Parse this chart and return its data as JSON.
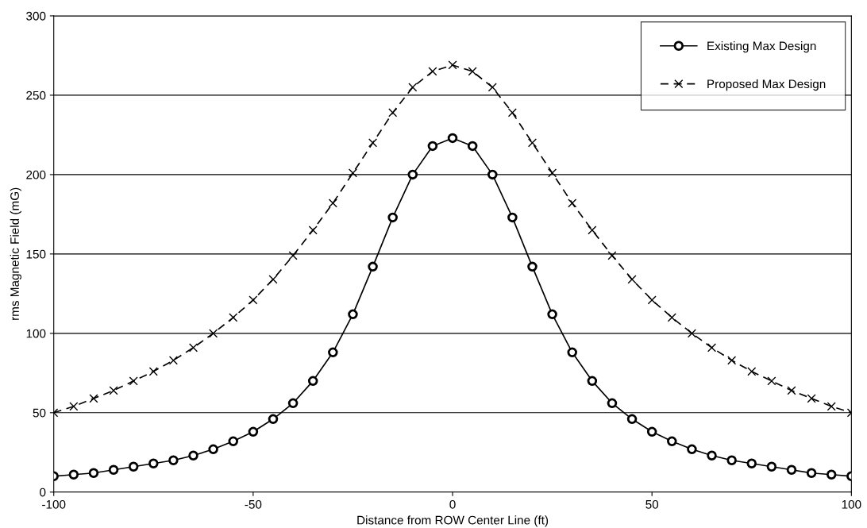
{
  "chart_data": {
    "type": "line",
    "xlabel": "Distance from ROW Center Line (ft)",
    "ylabel": "rms Magnetic Field (mG)",
    "x": [
      -100,
      -95,
      -90,
      -85,
      -80,
      -75,
      -70,
      -65,
      -60,
      -55,
      -50,
      -45,
      -40,
      -35,
      -30,
      -25,
      -20,
      -15,
      -10,
      -5,
      0,
      5,
      10,
      15,
      20,
      25,
      30,
      35,
      40,
      45,
      50,
      55,
      60,
      65,
      70,
      75,
      80,
      85,
      90,
      95,
      100
    ],
    "series": [
      {
        "name": "Existing Max Design",
        "color": "#000000",
        "marker": "circle",
        "line_style": "solid",
        "values": [
          10,
          11,
          12,
          14,
          16,
          18,
          20,
          23,
          27,
          32,
          38,
          46,
          56,
          70,
          88,
          112,
          142,
          173,
          200,
          218,
          223,
          218,
          200,
          173,
          142,
          112,
          88,
          70,
          56,
          46,
          38,
          32,
          27,
          23,
          20,
          18,
          16,
          14,
          12,
          11,
          10
        ]
      },
      {
        "name": "Proposed Max Design",
        "color": "#000000",
        "marker": "cross",
        "line_style": "dashed",
        "values": [
          50,
          54,
          59,
          64,
          70,
          76,
          83,
          91,
          100,
          110,
          121,
          134,
          149,
          165,
          182,
          201,
          220,
          239,
          255,
          265,
          269,
          265,
          255,
          239,
          220,
          201,
          182,
          165,
          149,
          134,
          121,
          110,
          100,
          91,
          83,
          76,
          70,
          64,
          59,
          54,
          50
        ]
      }
    ],
    "xlim": [
      -100,
      100
    ],
    "xticks": [
      -100,
      -50,
      0,
      50,
      100
    ],
    "ylim": [
      0,
      300
    ],
    "yticks": [
      0,
      50,
      100,
      150,
      200,
      250,
      300
    ],
    "grid": "y",
    "legend": "top right"
  }
}
